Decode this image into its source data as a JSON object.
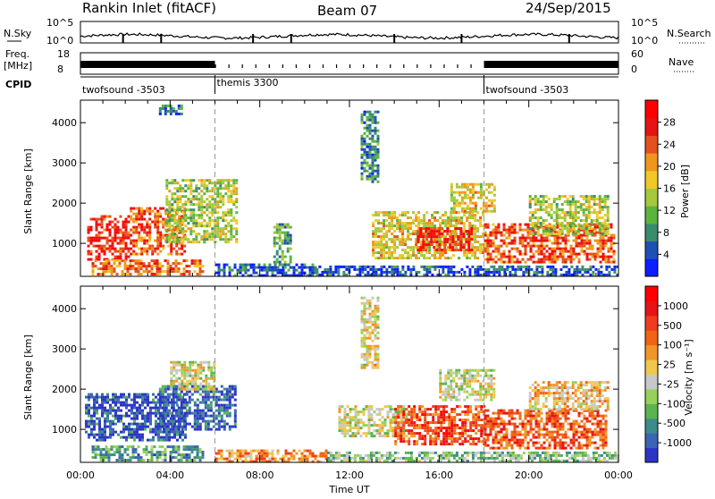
{
  "header": {
    "station": "Rankin Inlet (fitACF)",
    "beam": "Beam 07",
    "date": "24/Sep/2015"
  },
  "strips": {
    "nsky_label": "N.Sky",
    "nsky_ticks": [
      "10^5",
      "10^0"
    ],
    "nsearch_label": "N.Search",
    "nsearch_ticks": [
      "10^5",
      "10^0"
    ],
    "freq_label": "Freq.",
    "freq_unit": "[MHz]",
    "freq_ticks": [
      "18",
      "8"
    ],
    "nave_label": "Nave",
    "nave_ticks": [
      "60",
      "0"
    ],
    "cpid_label": "CPID",
    "cpid_segments": [
      {
        "label": "twofsound -3503",
        "start_hour": 0,
        "end_hour": 6.0
      },
      {
        "label": "themis 3300",
        "start_hour": 6.0,
        "end_hour": 18.0
      },
      {
        "label": "twofsound -3503",
        "start_hour": 18.0,
        "end_hour": 24
      }
    ]
  },
  "chart_data": [
    {
      "type": "heatmap",
      "name": "power",
      "ylabel": "Slant Range [km]",
      "ylim": [
        180,
        4560
      ],
      "yticks": [
        "1000",
        "2000",
        "3000",
        "4000"
      ],
      "xlim": [
        0,
        24
      ],
      "colorbar_label": "Power [dB]",
      "colorbar_ticks": [
        "28",
        "24",
        "20",
        "16",
        "12",
        "8",
        "4"
      ],
      "colorbar_colors": [
        "#0a1eff",
        "#1e50b4",
        "#3a8c6e",
        "#5cb43c",
        "#a5c83c",
        "#f0c828",
        "#f0961e",
        "#e6501e",
        "#e61414",
        "#ff0000"
      ],
      "vertical_markers_hours": [
        6.0,
        18.0
      ],
      "regions": [
        {
          "start_hour": 0.3,
          "end_hour": 2.2,
          "min_km": 600,
          "max_km": 1700,
          "level": 0.85
        },
        {
          "start_hour": 2.2,
          "end_hour": 4.6,
          "min_km": 700,
          "max_km": 1900,
          "level": 0.75
        },
        {
          "start_hour": 3.8,
          "end_hour": 7.0,
          "min_km": 1000,
          "max_km": 2600,
          "level": 0.45
        },
        {
          "start_hour": 0.5,
          "end_hour": 5.5,
          "min_km": 200,
          "max_km": 600,
          "level": 0.7
        },
        {
          "start_hour": 6.0,
          "end_hour": 10.5,
          "min_km": 200,
          "max_km": 500,
          "level": 0.15
        },
        {
          "start_hour": 8.6,
          "end_hour": 9.4,
          "min_km": 400,
          "max_km": 1500,
          "level": 0.3
        },
        {
          "start_hour": 10.5,
          "end_hour": 24,
          "min_km": 200,
          "max_km": 450,
          "level": 0.15
        },
        {
          "start_hour": 13.0,
          "end_hour": 18.0,
          "min_km": 600,
          "max_km": 1800,
          "level": 0.55
        },
        {
          "start_hour": 15.0,
          "end_hour": 17.5,
          "min_km": 800,
          "max_km": 1400,
          "level": 0.85
        },
        {
          "start_hour": 16.5,
          "end_hour": 18.5,
          "min_km": 1800,
          "max_km": 2500,
          "level": 0.55
        },
        {
          "start_hour": 18.0,
          "end_hour": 23.8,
          "min_km": 500,
          "max_km": 1500,
          "level": 0.75
        },
        {
          "start_hour": 20.0,
          "end_hour": 23.5,
          "min_km": 1200,
          "max_km": 2200,
          "level": 0.45
        },
        {
          "start_hour": 12.5,
          "end_hour": 13.3,
          "min_km": 2500,
          "max_km": 4300,
          "level": 0.25
        },
        {
          "start_hour": 3.5,
          "end_hour": 4.5,
          "min_km": 4200,
          "max_km": 4450,
          "level": 0.2
        }
      ]
    },
    {
      "type": "heatmap",
      "name": "velocity",
      "ylabel": "Slant Range [km]",
      "ylim": [
        180,
        4560
      ],
      "yticks": [
        "1000",
        "2000",
        "3000",
        "4000"
      ],
      "xlabel": "Time UT",
      "xlim": [
        0,
        24
      ],
      "xticks": [
        "00:00",
        "04:00",
        "08:00",
        "12:00",
        "16:00",
        "20:00",
        "00:00"
      ],
      "colorbar_label": "Velocity [m s⁻¹]",
      "colorbar_ticks": [
        "1000",
        "500",
        "100",
        "25",
        "-25",
        "-100",
        "-500",
        "-1000"
      ],
      "colorbar_colors": [
        "#2c34c8",
        "#3c64b4",
        "#3c8c8c",
        "#5cb450",
        "#96d25a",
        "#c8c8c8",
        "#f0c850",
        "#f09628",
        "#f06414",
        "#f03c1e",
        "#e61414",
        "#ff0000"
      ],
      "vertical_markers_hours": [
        6.0,
        18.0
      ],
      "regions": [
        {
          "start_hour": 0.2,
          "end_hour": 4.7,
          "min_km": 700,
          "max_km": 1900,
          "level": 0.1
        },
        {
          "start_hour": 3.5,
          "end_hour": 6.9,
          "min_km": 1000,
          "max_km": 2100,
          "level": 0.12
        },
        {
          "start_hour": 4.0,
          "end_hour": 6.0,
          "min_km": 2000,
          "max_km": 2700,
          "level": 0.45
        },
        {
          "start_hour": 0.5,
          "end_hour": 5.5,
          "min_km": 200,
          "max_km": 600,
          "level": 0.25
        },
        {
          "start_hour": 6.0,
          "end_hour": 11.0,
          "min_km": 200,
          "max_km": 500,
          "level": 0.65
        },
        {
          "start_hour": 11.0,
          "end_hour": 24,
          "min_km": 200,
          "max_km": 450,
          "level": 0.35
        },
        {
          "start_hour": 11.5,
          "end_hour": 14.5,
          "min_km": 800,
          "max_km": 1600,
          "level": 0.45
        },
        {
          "start_hour": 14.0,
          "end_hour": 18.0,
          "min_km": 600,
          "max_km": 1600,
          "level": 0.78
        },
        {
          "start_hour": 16.0,
          "end_hour": 18.5,
          "min_km": 1700,
          "max_km": 2500,
          "level": 0.45
        },
        {
          "start_hour": 18.0,
          "end_hour": 23.5,
          "min_km": 500,
          "max_km": 1500,
          "level": 0.75
        },
        {
          "start_hour": 20.0,
          "end_hour": 23.5,
          "min_km": 1500,
          "max_km": 2200,
          "level": 0.55
        },
        {
          "start_hour": 12.5,
          "end_hour": 13.3,
          "min_km": 2500,
          "max_km": 4300,
          "level": 0.5
        }
      ]
    }
  ]
}
